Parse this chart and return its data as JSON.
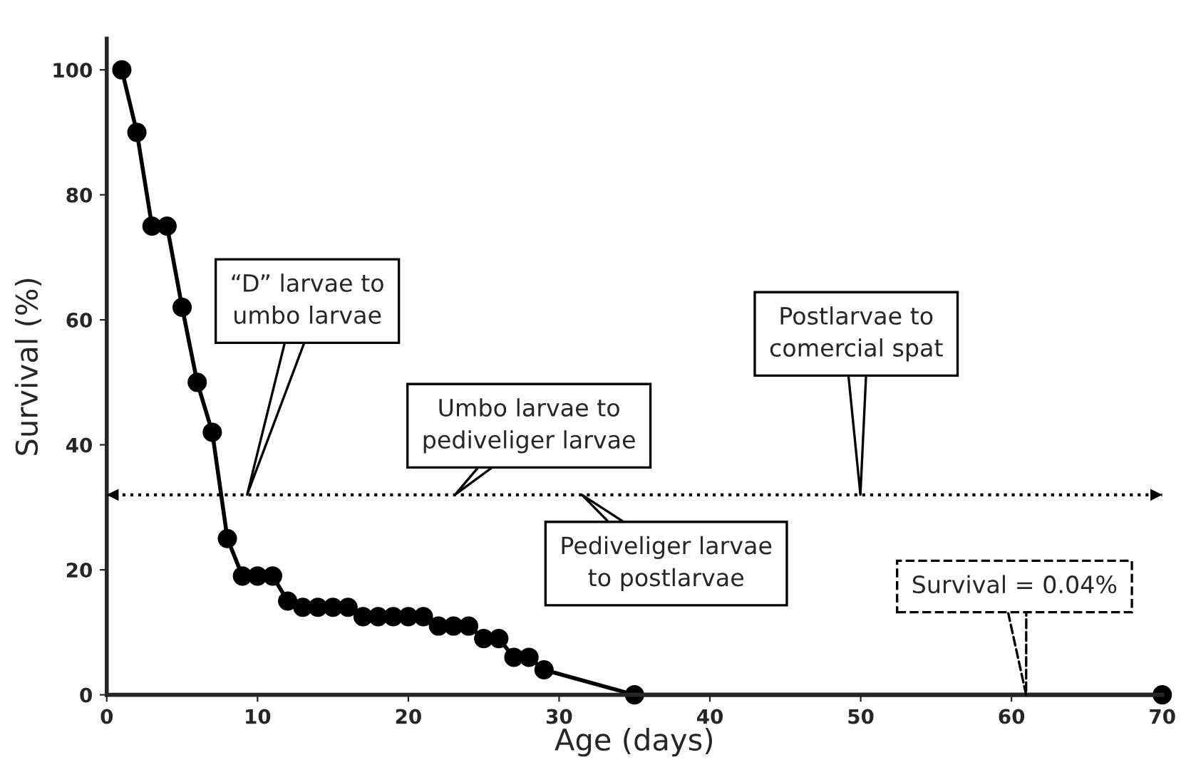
{
  "chart_data": {
    "type": "line",
    "xlabel": "Age (days)",
    "ylabel": "Survival (%)",
    "x": [
      1,
      2,
      3,
      4,
      5,
      6,
      7,
      8,
      9,
      10,
      11,
      12,
      13,
      14,
      15,
      16,
      17,
      18,
      19,
      20,
      21,
      22,
      23,
      24,
      25,
      26,
      27,
      28,
      29,
      35,
      70
    ],
    "series": [
      {
        "color": "#000000",
        "values": [
          100,
          90,
          75,
          75,
          62,
          50,
          42,
          25,
          19,
          19,
          19,
          15,
          14,
          14,
          14,
          14,
          12.5,
          12.5,
          12.5,
          12.5,
          12.5,
          11,
          11,
          11,
          9,
          9,
          6,
          6,
          4,
          0,
          0
        ]
      }
    ],
    "marker": "circle",
    "line_style": "solid",
    "xlim": [
      0,
      70
    ],
    "xticks": [
      0,
      10,
      20,
      30,
      40,
      50,
      60,
      70
    ],
    "ylim": [
      0,
      105
    ],
    "yticks": [
      0,
      20,
      40,
      60,
      80,
      100
    ],
    "grid": false,
    "legend": false,
    "ref_lines": [
      {
        "axis": "y",
        "value": 32,
        "line_style": "dotted",
        "color": "#000000"
      }
    ],
    "annotations": [
      "“D” larvae to\numbo larvae",
      "Umbo larvae to\npediveliger larvae",
      "Pediveliger larvae\nto postlarvae",
      "Postlarvae to\ncomercial spat",
      "Survival = 0.04%"
    ]
  }
}
